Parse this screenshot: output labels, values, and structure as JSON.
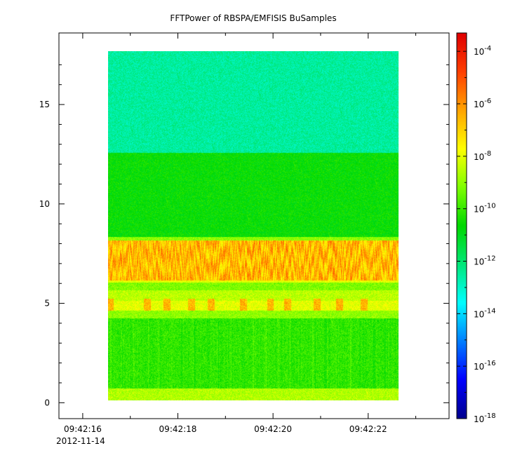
{
  "chart_data": {
    "type": "heatmap",
    "title": "FFTPower of RBSPA/EMFISIS  BuSamples",
    "x_axis": {
      "type": "time",
      "range": [
        "09:42:15.5",
        "09:42:23.7"
      ],
      "ticks": [
        {
          "t": 16,
          "label": "09:42:16"
        },
        {
          "t": 18,
          "label": "09:42:18"
        },
        {
          "t": 20,
          "label": "09:42:20"
        },
        {
          "t": 22,
          "label": "09:42:22"
        }
      ],
      "minor_ticks": [
        17,
        19,
        21,
        23
      ],
      "date_label": "2012-11-14",
      "xlabel": ""
    },
    "y_axis": {
      "range": [
        -0.8,
        18.6
      ],
      "ticks": [
        0,
        5,
        10,
        15
      ],
      "ylabel": ""
    },
    "colorbar": {
      "scale": "log",
      "range_exponent": [
        -18,
        -3.3
      ],
      "tick_exponents": [
        -18,
        -16,
        -14,
        -12,
        -10,
        -8,
        -6,
        -4
      ],
      "colormap": [
        "#00008f",
        "#0000ff",
        "#0080ff",
        "#00ffff",
        "#00e87a",
        "#00d800",
        "#7fff00",
        "#ffff00",
        "#ffa500",
        "#ff4000",
        "#e00000"
      ]
    },
    "data_extent": {
      "t_start": 16.7,
      "t_end": 22.6,
      "f_min": 0,
      "f_max": 17.5
    },
    "bands": [
      {
        "f_from": 12.4,
        "f_to": 17.5,
        "power_exp": -12.5
      },
      {
        "f_from": 8.2,
        "f_to": 12.4,
        "power_exp": -10.6
      },
      {
        "f_from": 8.0,
        "f_to": 8.2,
        "power_exp": -9.0
      },
      {
        "f_from": 6.0,
        "f_to": 8.0,
        "power_exp": -6.6
      },
      {
        "f_from": 5.9,
        "f_to": 6.0,
        "power_exp": -8.0
      },
      {
        "f_from": 5.5,
        "f_to": 5.9,
        "power_exp": -9.2
      },
      {
        "f_from": 5.0,
        "f_to": 5.5,
        "power_exp": -8.5
      },
      {
        "f_from": 4.5,
        "f_to": 5.0,
        "power_exp": -8.0
      },
      {
        "f_from": 4.1,
        "f_to": 4.5,
        "power_exp": -9.0
      },
      {
        "f_from": 0.6,
        "f_to": 4.1,
        "power_exp": -10.1
      },
      {
        "f_from": 0.0,
        "f_to": 0.6,
        "power_exp": -8.6
      }
    ],
    "bursts": {
      "f_from": 4.5,
      "f_to": 5.1,
      "power_exp": -6.5,
      "times": [
        16.75,
        17.5,
        17.9,
        18.4,
        18.8,
        19.45,
        20.0,
        20.35,
        20.95,
        21.4,
        21.9
      ]
    },
    "grid": false
  }
}
